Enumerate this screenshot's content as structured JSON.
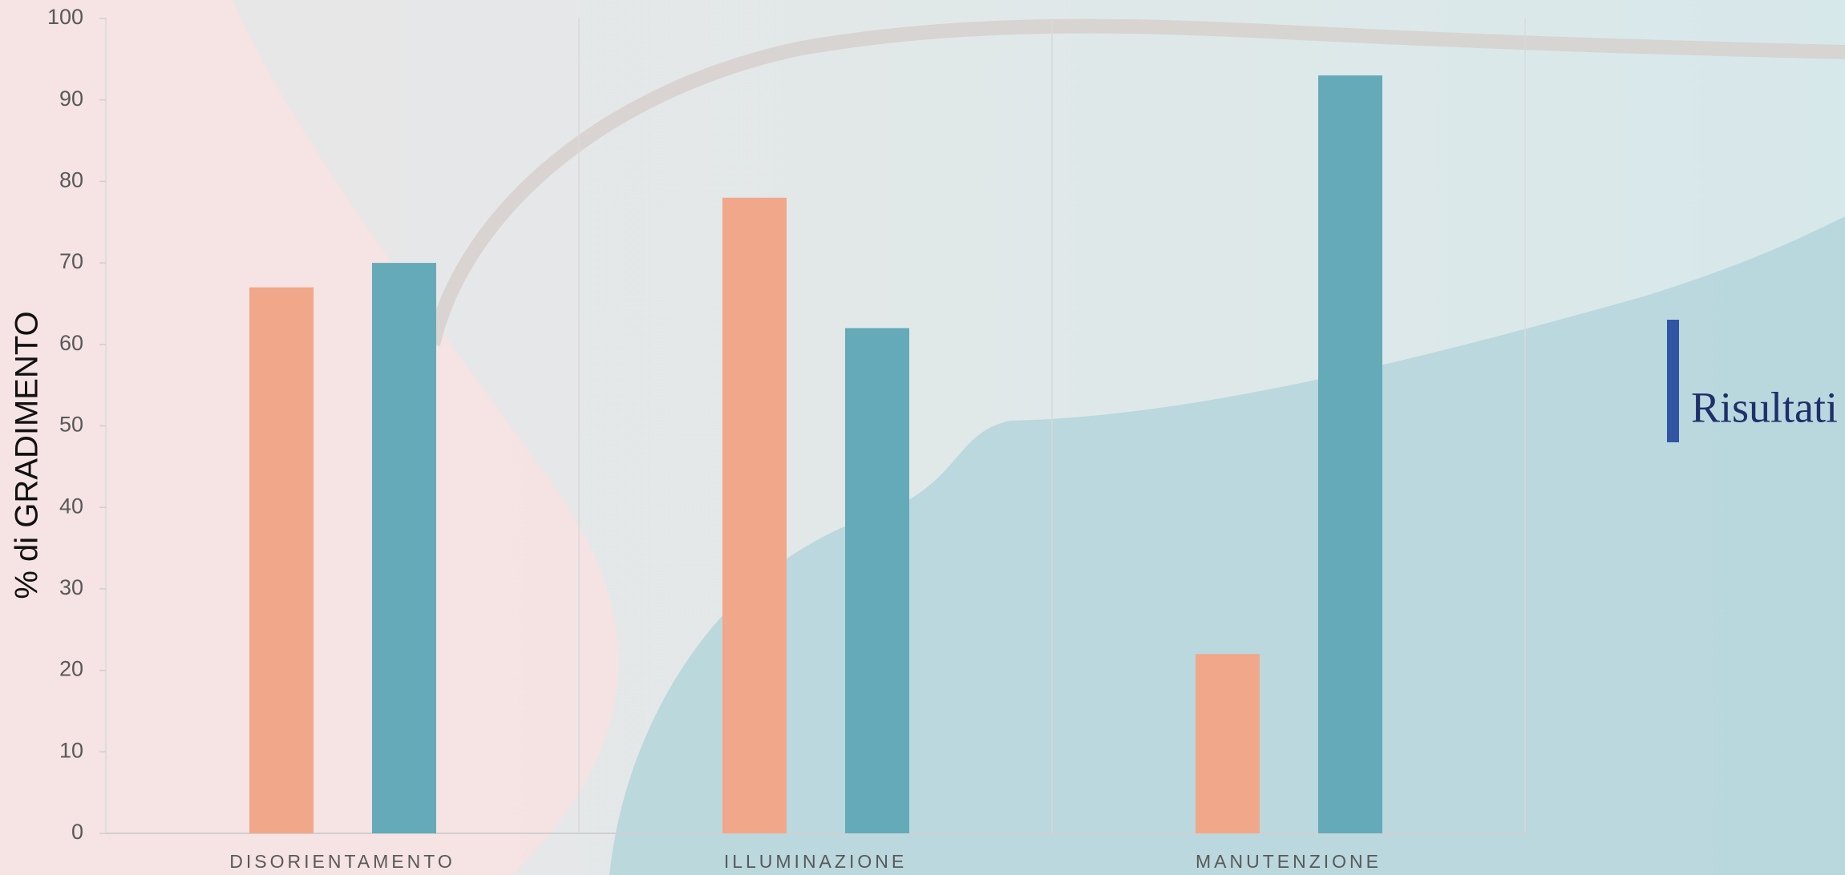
{
  "chart_data": {
    "type": "bar",
    "title": "Risultati",
    "y_label": "% di GRADIMENTO",
    "categories": [
      "DISORIENTAMENTO",
      "ILLUMINAZIONE",
      "MANUTENZIONE"
    ],
    "series": [
      {
        "color": "#f1a78a",
        "values": [
          67,
          78,
          22
        ]
      },
      {
        "color": "#64aab9",
        "values": [
          70,
          62,
          93
        ]
      }
    ],
    "ylim": [
      0,
      100
    ],
    "yticks": [
      0,
      10,
      20,
      30,
      40,
      50,
      60,
      70,
      80,
      90,
      100
    ],
    "grid": false
  }
}
